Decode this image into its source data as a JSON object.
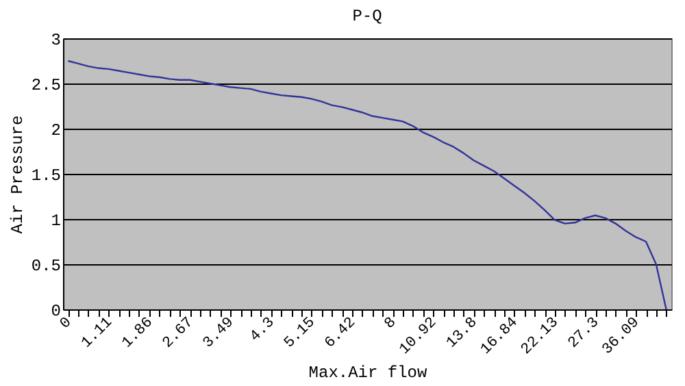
{
  "chart_data": {
    "type": "line",
    "title": "P-Q",
    "xlabel": "Max.Air flow",
    "ylabel": "Air Pressure",
    "categories": [
      "0",
      null,
      null,
      null,
      "1.11",
      null,
      null,
      null,
      "1.86",
      null,
      null,
      null,
      "2.67",
      null,
      null,
      null,
      "3.49",
      null,
      null,
      null,
      "4.3",
      null,
      null,
      null,
      "5.15",
      null,
      null,
      null,
      "6.42",
      null,
      null,
      null,
      "8",
      null,
      null,
      null,
      "10.92",
      null,
      null,
      null,
      "13.8",
      null,
      null,
      null,
      "16.84",
      null,
      null,
      null,
      "22.13",
      null,
      null,
      null,
      "27.3",
      null,
      null,
      null,
      "36.09",
      null,
      null,
      null
    ],
    "series": [
      {
        "color": "#333399",
        "values": [
          2.75,
          2.72,
          2.69,
          2.67,
          2.66,
          2.64,
          2.62,
          2.6,
          2.58,
          2.57,
          2.55,
          2.54,
          2.54,
          2.52,
          2.5,
          2.48,
          2.46,
          2.45,
          2.44,
          2.41,
          2.39,
          2.37,
          2.36,
          2.35,
          2.33,
          2.3,
          2.26,
          2.24,
          2.21,
          2.18,
          2.14,
          2.12,
          2.1,
          2.08,
          2.03,
          1.96,
          1.91,
          1.85,
          1.8,
          1.73,
          1.65,
          1.59,
          1.53,
          1.45,
          1.37,
          1.29,
          1.2,
          1.1,
          0.99,
          0.95,
          0.96,
          1.01,
          1.04,
          1.01,
          0.95,
          0.87,
          0.8,
          0.75,
          0.5,
          0
        ]
      }
    ],
    "ylim": [
      0,
      3
    ],
    "yticks": [
      0,
      0.5,
      1,
      1.5,
      2,
      2.5,
      3
    ],
    "grid": "y",
    "legend": false,
    "marker": "none",
    "line_style": "solid"
  }
}
